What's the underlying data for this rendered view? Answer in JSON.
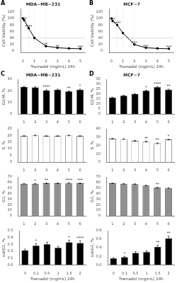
{
  "chart_data": [
    {
      "type": "line",
      "panel_label": "A",
      "title": "MDA−MB−231",
      "xlabel": "Tramadol (mg/mL) 24h",
      "ylabel": "Cell Viability (%)",
      "x": [
        0,
        0.1,
        0.5,
        1,
        2,
        3,
        4,
        5
      ],
      "values": [
        100,
        95,
        70,
        40,
        15,
        10,
        8,
        7
      ],
      "color": "black",
      "marker": "square",
      "hline": 40,
      "vlines": [
        0.5,
        1.0,
        2.0
      ],
      "xlim": [
        -0.2,
        5.4
      ],
      "ylim": [
        -5,
        130
      ],
      "xticks": [
        0,
        1,
        2,
        3,
        4,
        5
      ],
      "yticks": [
        0,
        20,
        40,
        60,
        80,
        100,
        120
      ],
      "grid": false,
      "annotations": [
        {
          "text": "***",
          "x": 0.1,
          "y": 96
        },
        {
          "text": "****",
          "x": 0.5,
          "y": 72
        },
        {
          "text": "**",
          "x": 2.0,
          "y": 17
        },
        {
          "text": "**",
          "x": 3.0,
          "y": 12
        },
        {
          "text": "***",
          "x": 5.0,
          "y": 9
        }
      ]
    },
    {
      "type": "line",
      "panel_label": "B",
      "title": "MCF−7",
      "xlabel": "Tramadol (mg/mL) 24h",
      "ylabel": "Cell Viability (%)",
      "x": [
        0,
        0.1,
        0.5,
        1,
        2,
        3,
        4,
        5
      ],
      "values": [
        100,
        92,
        80,
        55,
        20,
        10,
        8,
        7
      ],
      "color": "black",
      "marker": "square",
      "hline": 40,
      "vlines": [
        0.5,
        1.0,
        2.0
      ],
      "xlim": [
        -0.2,
        5.4
      ],
      "ylim": [
        -5,
        130
      ],
      "xticks": [
        0,
        1,
        2,
        3,
        4,
        5
      ],
      "yticks": [
        0,
        20,
        40,
        60,
        80,
        100,
        120
      ],
      "grid": false,
      "annotations": [
        {
          "text": "***",
          "x": 0.1,
          "y": 94
        },
        {
          "text": "****",
          "x": 0.5,
          "y": 82
        },
        {
          "text": "***",
          "x": 2.0,
          "y": 22
        },
        {
          "text": "***",
          "x": 3.0,
          "y": 12
        },
        {
          "text": "***",
          "x": 5.0,
          "y": 9
        }
      ]
    },
    {
      "type": "bar",
      "panel_label": "C",
      "title": "MDA−MB−231",
      "ylabel": "G2/M, %",
      "categories": [
        "1",
        "2",
        "3",
        "4",
        "5",
        "6"
      ],
      "values": [
        23.5,
        23.0,
        20.5,
        21.0,
        19.5,
        21.0
      ],
      "errors": [
        0.5,
        0.5,
        0.5,
        0.5,
        0.5,
        0.5
      ],
      "color": "black",
      "ylim": [
        0,
        30
      ],
      "yticks": [
        0,
        10,
        20,
        30
      ],
      "grid": false,
      "annotations": [
        null,
        null,
        "****",
        null,
        "**",
        "*"
      ]
    },
    {
      "type": "bar",
      "ylabel": "S, %",
      "categories": [
        "1",
        "2",
        "3",
        "4",
        "5",
        "6"
      ],
      "values": [
        19.5,
        20.0,
        19.5,
        19.5,
        20.0,
        19.5
      ],
      "errors": [
        0.3,
        0.3,
        0.3,
        0.3,
        0.3,
        0.3
      ],
      "color": "white",
      "ylim": [
        0,
        25
      ],
      "yticks": [
        0,
        5,
        10,
        15,
        20,
        25
      ],
      "grid": false
    },
    {
      "type": "bar",
      "ylabel": "G1, %",
      "categories": [
        "1",
        "2",
        "3",
        "4",
        "5",
        "6"
      ],
      "values": [
        57.5,
        57.5,
        58.5,
        58.5,
        59.0,
        58.5
      ],
      "errors": [
        0.5,
        0.5,
        0.5,
        0.5,
        0.5,
        0.5
      ],
      "color": "#909090",
      "ylim": [
        0,
        70
      ],
      "yticks": [
        0,
        10,
        20,
        30,
        40,
        50,
        60,
        70
      ],
      "grid": false,
      "annotations": [
        null,
        "*",
        "**",
        null,
        "****",
        "***"
      ]
    },
    {
      "type": "bar",
      "ylabel": "subG1, %",
      "xlabel": "Tramadol (mg/mL) 24h",
      "categories": [
        "0",
        "0.1",
        "0.5",
        "1",
        "1.5",
        "2"
      ],
      "values": [
        0.21,
        0.28,
        0.3,
        0.25,
        0.33,
        0.32
      ],
      "errors": [
        0.02,
        0.03,
        0.03,
        0.02,
        0.03,
        0.03
      ],
      "color": "black",
      "ylim": [
        0,
        0.5
      ],
      "yticks": [
        {
          "value": 0,
          "label": "0.0"
        },
        0.1,
        0.2,
        0.3,
        0.4,
        0.5
      ],
      "grid": false,
      "annotations": [
        null,
        "*",
        null,
        null,
        "*",
        "****"
      ]
    },
    {
      "type": "bar",
      "panel_label": "D",
      "title": "MCF−7",
      "ylabel": "G2/M, %",
      "categories": [
        "1",
        "2",
        "3",
        "4",
        "5",
        "6"
      ],
      "values": [
        16.5,
        18.5,
        20.0,
        23.5,
        27.0,
        24.5
      ],
      "errors": [
        0.5,
        0.5,
        0.5,
        0.5,
        0.7,
        0.6
      ],
      "color": "black",
      "ylim": [
        0,
        35
      ],
      "yticks": [
        0,
        5,
        10,
        15,
        20,
        25,
        30,
        35
      ],
      "grid": false,
      "annotations": [
        null,
        null,
        null,
        "*",
        "****",
        "**"
      ]
    },
    {
      "type": "bar",
      "ylabel": "S, %",
      "categories": [
        "1",
        "2",
        "3",
        "4",
        "5",
        "6"
      ],
      "values": [
        28.0,
        27.5,
        25.5,
        24.5,
        22.5,
        27.0
      ],
      "errors": [
        0.5,
        0.5,
        0.5,
        0.5,
        0.5,
        0.5
      ],
      "color": "white",
      "ylim": [
        0,
        40
      ],
      "yticks": [
        0,
        10,
        20,
        30,
        40
      ],
      "grid": false,
      "annotations": [
        null,
        null,
        null,
        "**",
        "**",
        "*"
      ]
    },
    {
      "type": "bar",
      "ylabel": "G1, %",
      "categories": [
        "1",
        "2",
        "3",
        "4",
        "5",
        "6"
      ],
      "values": [
        58.5,
        57.5,
        57.0,
        54.5,
        50.5,
        50.0
      ],
      "errors": [
        0.5,
        0.5,
        0.5,
        0.5,
        0.6,
        0.6
      ],
      "color": "#909090",
      "ylim": [
        0,
        70
      ],
      "yticks": [
        0,
        10,
        20,
        30,
        40,
        50,
        60,
        70
      ],
      "grid": false,
      "annotations": [
        null,
        null,
        null,
        null,
        "**",
        null
      ]
    },
    {
      "type": "bar",
      "ylabel": "subG1, %",
      "xlabel": "Tramadol (mg/mL) 24h",
      "categories": [
        "0",
        "0.1",
        "0.5",
        "1",
        "1.5",
        "2"
      ],
      "values": [
        0.15,
        0.18,
        0.28,
        0.3,
        0.42,
        0.62
      ],
      "errors": [
        0.02,
        0.02,
        0.03,
        0.03,
        0.04,
        0.05
      ],
      "color": "black",
      "ylim": [
        0,
        0.8
      ],
      "yticks": [
        {
          "value": 0,
          "label": "0.0"
        },
        0.2,
        0.4,
        0.6,
        0.8
      ],
      "grid": false,
      "annotations": [
        null,
        "*",
        null,
        null,
        "**",
        "**"
      ]
    }
  ]
}
